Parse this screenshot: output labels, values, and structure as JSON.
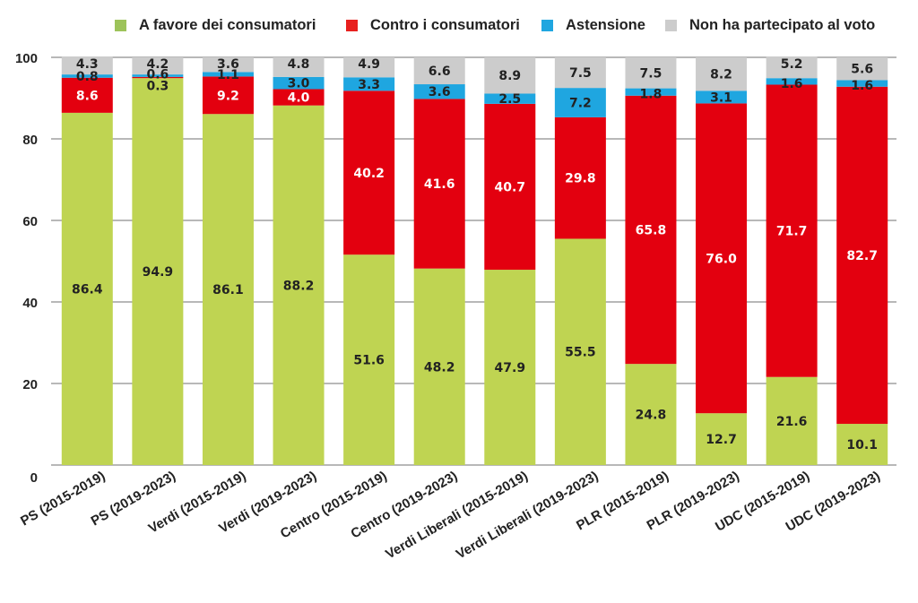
{
  "chart_data": {
    "type": "bar",
    "stacked": true,
    "title": "",
    "xlabel": "",
    "ylabel": "",
    "ylim": [
      0,
      100
    ],
    "yticks": [
      0,
      20,
      40,
      60,
      80,
      100
    ],
    "grid": true,
    "legend_position": "top",
    "categories": [
      "PS (2015-2019)",
      "PS (2019-2023)",
      "Verdi (2015-2019)",
      "Verdi (2019-2023)",
      "Centro (2015-2019)",
      "Centro (2019-2023)",
      "Verdi Liberali (2015-2019)",
      "Verdi Liberali (2019-2023)",
      "PLR (2015-2019)",
      "PLR (2019-2023)",
      "UDC (2015-2019)",
      "UDC (2019-2023)"
    ],
    "series": [
      {
        "name": "A  favore dei consumatori",
        "color": "#bfd452",
        "label_color": "#222222",
        "values": [
          86.4,
          94.9,
          86.1,
          88.2,
          51.6,
          48.2,
          47.9,
          55.5,
          24.8,
          12.7,
          21.6,
          10.1
        ]
      },
      {
        "name": "Contro i consumatori",
        "color": "#e3000f",
        "label_color": "#ffffff",
        "values": [
          8.6,
          0.3,
          9.2,
          4.0,
          40.2,
          41.6,
          40.7,
          29.8,
          65.8,
          76.0,
          71.7,
          82.7
        ]
      },
      {
        "name": "Astensione",
        "color": "#1fa6e0",
        "label_color": "#222222",
        "values": [
          0.8,
          0.6,
          1.1,
          3.0,
          3.3,
          3.6,
          2.5,
          7.2,
          1.8,
          3.1,
          1.6,
          1.6
        ]
      },
      {
        "name": "Non ha partecipato al voto",
        "color": "#cccccc",
        "label_color": "#222222",
        "values": [
          4.3,
          4.2,
          3.6,
          4.8,
          4.9,
          6.6,
          8.9,
          7.5,
          7.5,
          8.2,
          5.2,
          5.6
        ]
      }
    ]
  }
}
